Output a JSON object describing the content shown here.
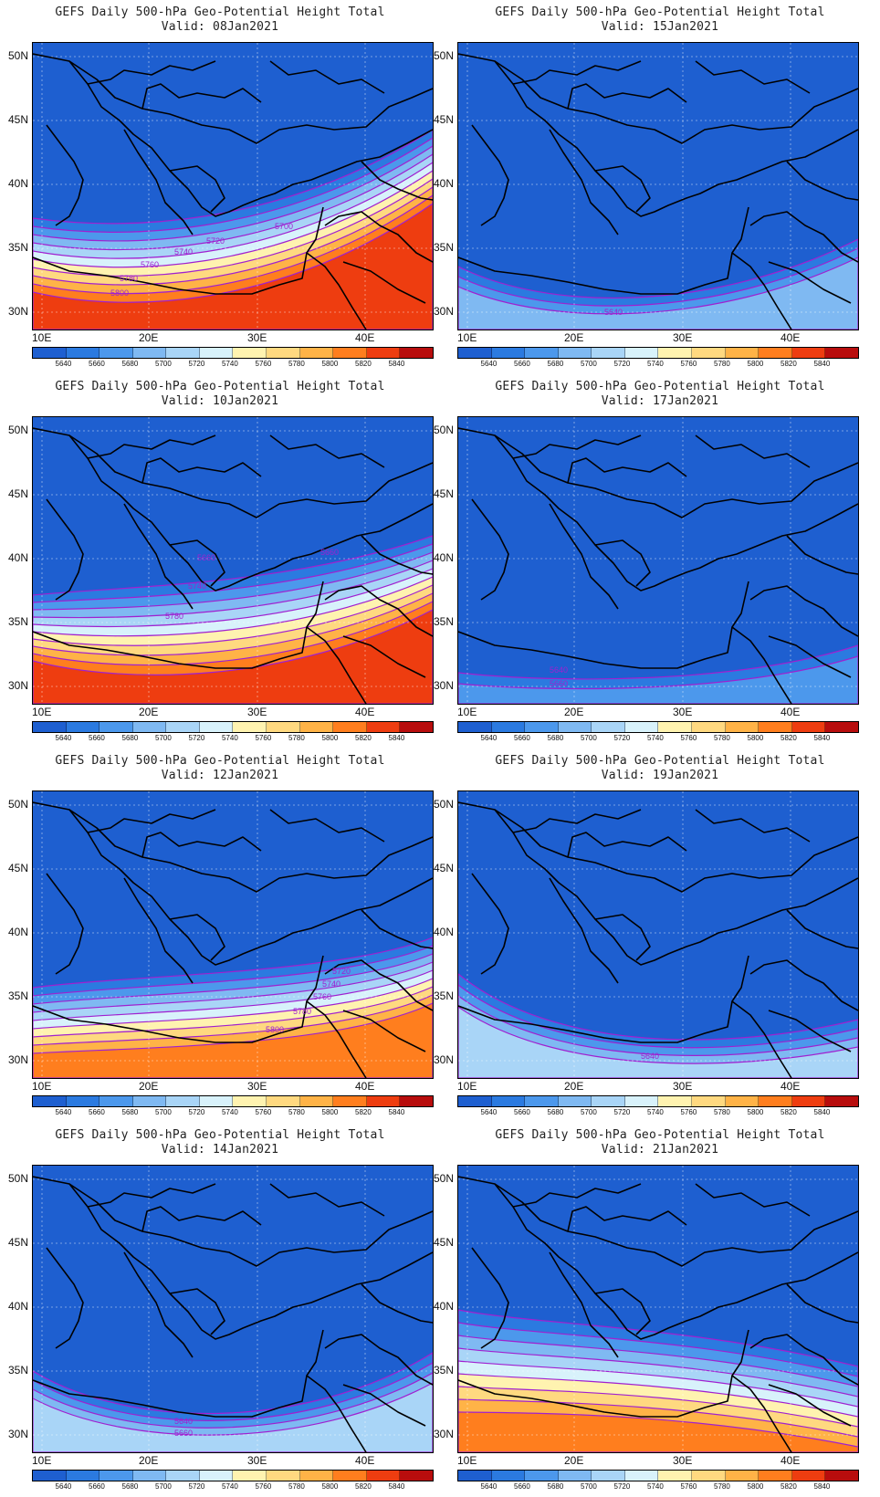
{
  "header": {
    "title": "GEFS Daily 500-hPa Geo-Potential Height Total",
    "valid_prefix": "Valid:"
  },
  "axis": {
    "lat_labels": [
      "50N",
      "45N",
      "40N",
      "35N",
      "30N"
    ],
    "lon_labels": [
      "10E",
      "20E",
      "30E",
      "40E"
    ]
  },
  "colorbar": {
    "labels": [
      "5640",
      "5660",
      "5680",
      "5700",
      "5720",
      "5740",
      "5760",
      "5780",
      "5800",
      "5820",
      "5840"
    ],
    "colors": [
      "#1e5fd0",
      "#2b7ae0",
      "#4c98ec",
      "#7fb9f2",
      "#a9d5f7",
      "#d8f2fb",
      "#fff3b0",
      "#ffd980",
      "#ffb347",
      "#ff7e1e",
      "#ee3d10",
      "#b80d0d"
    ]
  },
  "panels": [
    {
      "valid_date": "08Jan2021",
      "background_color": "#1e5fd0",
      "bands": [
        {
          "level": "5660",
          "color": "#2b7ae0"
        },
        {
          "level": "5680",
          "color": "#4c98ec"
        },
        {
          "level": "5700",
          "color": "#7fb9f2"
        },
        {
          "level": "5720",
          "color": "#a9d5f7"
        },
        {
          "level": "5740",
          "color": "#d8f2fb"
        },
        {
          "level": "5760",
          "color": "#fff3b0"
        },
        {
          "level": "5780",
          "color": "#ffd980"
        },
        {
          "level": "5800",
          "color": "#ffb347"
        },
        {
          "level": "5820",
          "color": "#ff7e1e"
        },
        {
          "level": "5840",
          "color": "#ee3d10"
        }
      ],
      "labels": [
        "5700",
        "5720",
        "5740",
        "5760",
        "5780",
        "5800"
      ]
    },
    {
      "valid_date": "15Jan2021",
      "background_color": "#1e5fd0",
      "bands": [
        {
          "level": "5660",
          "color": "#2b7ae0"
        },
        {
          "level": "5680",
          "color": "#4c98ec"
        },
        {
          "level": "5700",
          "color": "#7fb9f2"
        }
      ],
      "labels": [
        "5640"
      ]
    },
    {
      "valid_date": "10Jan2021",
      "background_color": "#1e5fd0",
      "bands": [
        {
          "level": "5660",
          "color": "#2b7ae0"
        },
        {
          "level": "5680",
          "color": "#4c98ec"
        },
        {
          "level": "5700",
          "color": "#7fb9f2"
        },
        {
          "level": "5720",
          "color": "#a9d5f7"
        },
        {
          "level": "5740",
          "color": "#d8f2fb"
        },
        {
          "level": "5760",
          "color": "#fff3b0"
        },
        {
          "level": "5780",
          "color": "#ffd980"
        },
        {
          "level": "5800",
          "color": "#ffb347"
        },
        {
          "level": "5820",
          "color": "#ff7e1e"
        },
        {
          "level": "5840",
          "color": "#ee3d10"
        }
      ],
      "labels": [
        "5660",
        "5660",
        "5740",
        "5780"
      ]
    },
    {
      "valid_date": "17Jan2021",
      "background_color": "#1e5fd0",
      "bands": [
        {
          "level": "5660",
          "color": "#2b7ae0"
        },
        {
          "level": "5680",
          "color": "#4c98ec"
        }
      ],
      "labels": [
        "5640",
        "5660"
      ]
    },
    {
      "valid_date": "12Jan2021",
      "background_color": "#1e5fd0",
      "bands": [
        {
          "level": "5660",
          "color": "#2b7ae0"
        },
        {
          "level": "5680",
          "color": "#4c98ec"
        },
        {
          "level": "5700",
          "color": "#7fb9f2"
        },
        {
          "level": "5720",
          "color": "#a9d5f7"
        },
        {
          "level": "5740",
          "color": "#d8f2fb"
        },
        {
          "level": "5760",
          "color": "#fff3b0"
        },
        {
          "level": "5780",
          "color": "#ffd980"
        },
        {
          "level": "5800",
          "color": "#ffb347"
        },
        {
          "level": "5820",
          "color": "#ff7e1e"
        }
      ],
      "labels": [
        "5720",
        "5740",
        "5760",
        "5780",
        "5800"
      ]
    },
    {
      "valid_date": "19Jan2021",
      "background_color": "#1e5fd0",
      "bands": [
        {
          "level": "5660",
          "color": "#2b7ae0"
        },
        {
          "level": "5680",
          "color": "#4c98ec"
        },
        {
          "level": "5700",
          "color": "#7fb9f2"
        },
        {
          "level": "5720",
          "color": "#a9d5f7"
        }
      ],
      "labels": [
        "5640"
      ]
    },
    {
      "valid_date": "14Jan2021",
      "background_color": "#1e5fd0",
      "bands": [
        {
          "level": "5660",
          "color": "#2b7ae0"
        },
        {
          "level": "5680",
          "color": "#4c98ec"
        },
        {
          "level": "5700",
          "color": "#7fb9f2"
        },
        {
          "level": "5720",
          "color": "#a9d5f7"
        }
      ],
      "labels": [
        "5640",
        "5660"
      ]
    },
    {
      "valid_date": "21Jan2021",
      "background_color": "#1e5fd0",
      "bands": [
        {
          "level": "5660",
          "color": "#2b7ae0"
        },
        {
          "level": "5680",
          "color": "#4c98ec"
        },
        {
          "level": "5700",
          "color": "#7fb9f2"
        },
        {
          "level": "5720",
          "color": "#a9d5f7"
        },
        {
          "level": "5740",
          "color": "#d8f2fb"
        },
        {
          "level": "5760",
          "color": "#fff3b0"
        },
        {
          "level": "5780",
          "color": "#ffd980"
        },
        {
          "level": "5800",
          "color": "#ffb347"
        },
        {
          "level": "5820",
          "color": "#ff7e1e"
        }
      ],
      "labels": []
    }
  ]
}
